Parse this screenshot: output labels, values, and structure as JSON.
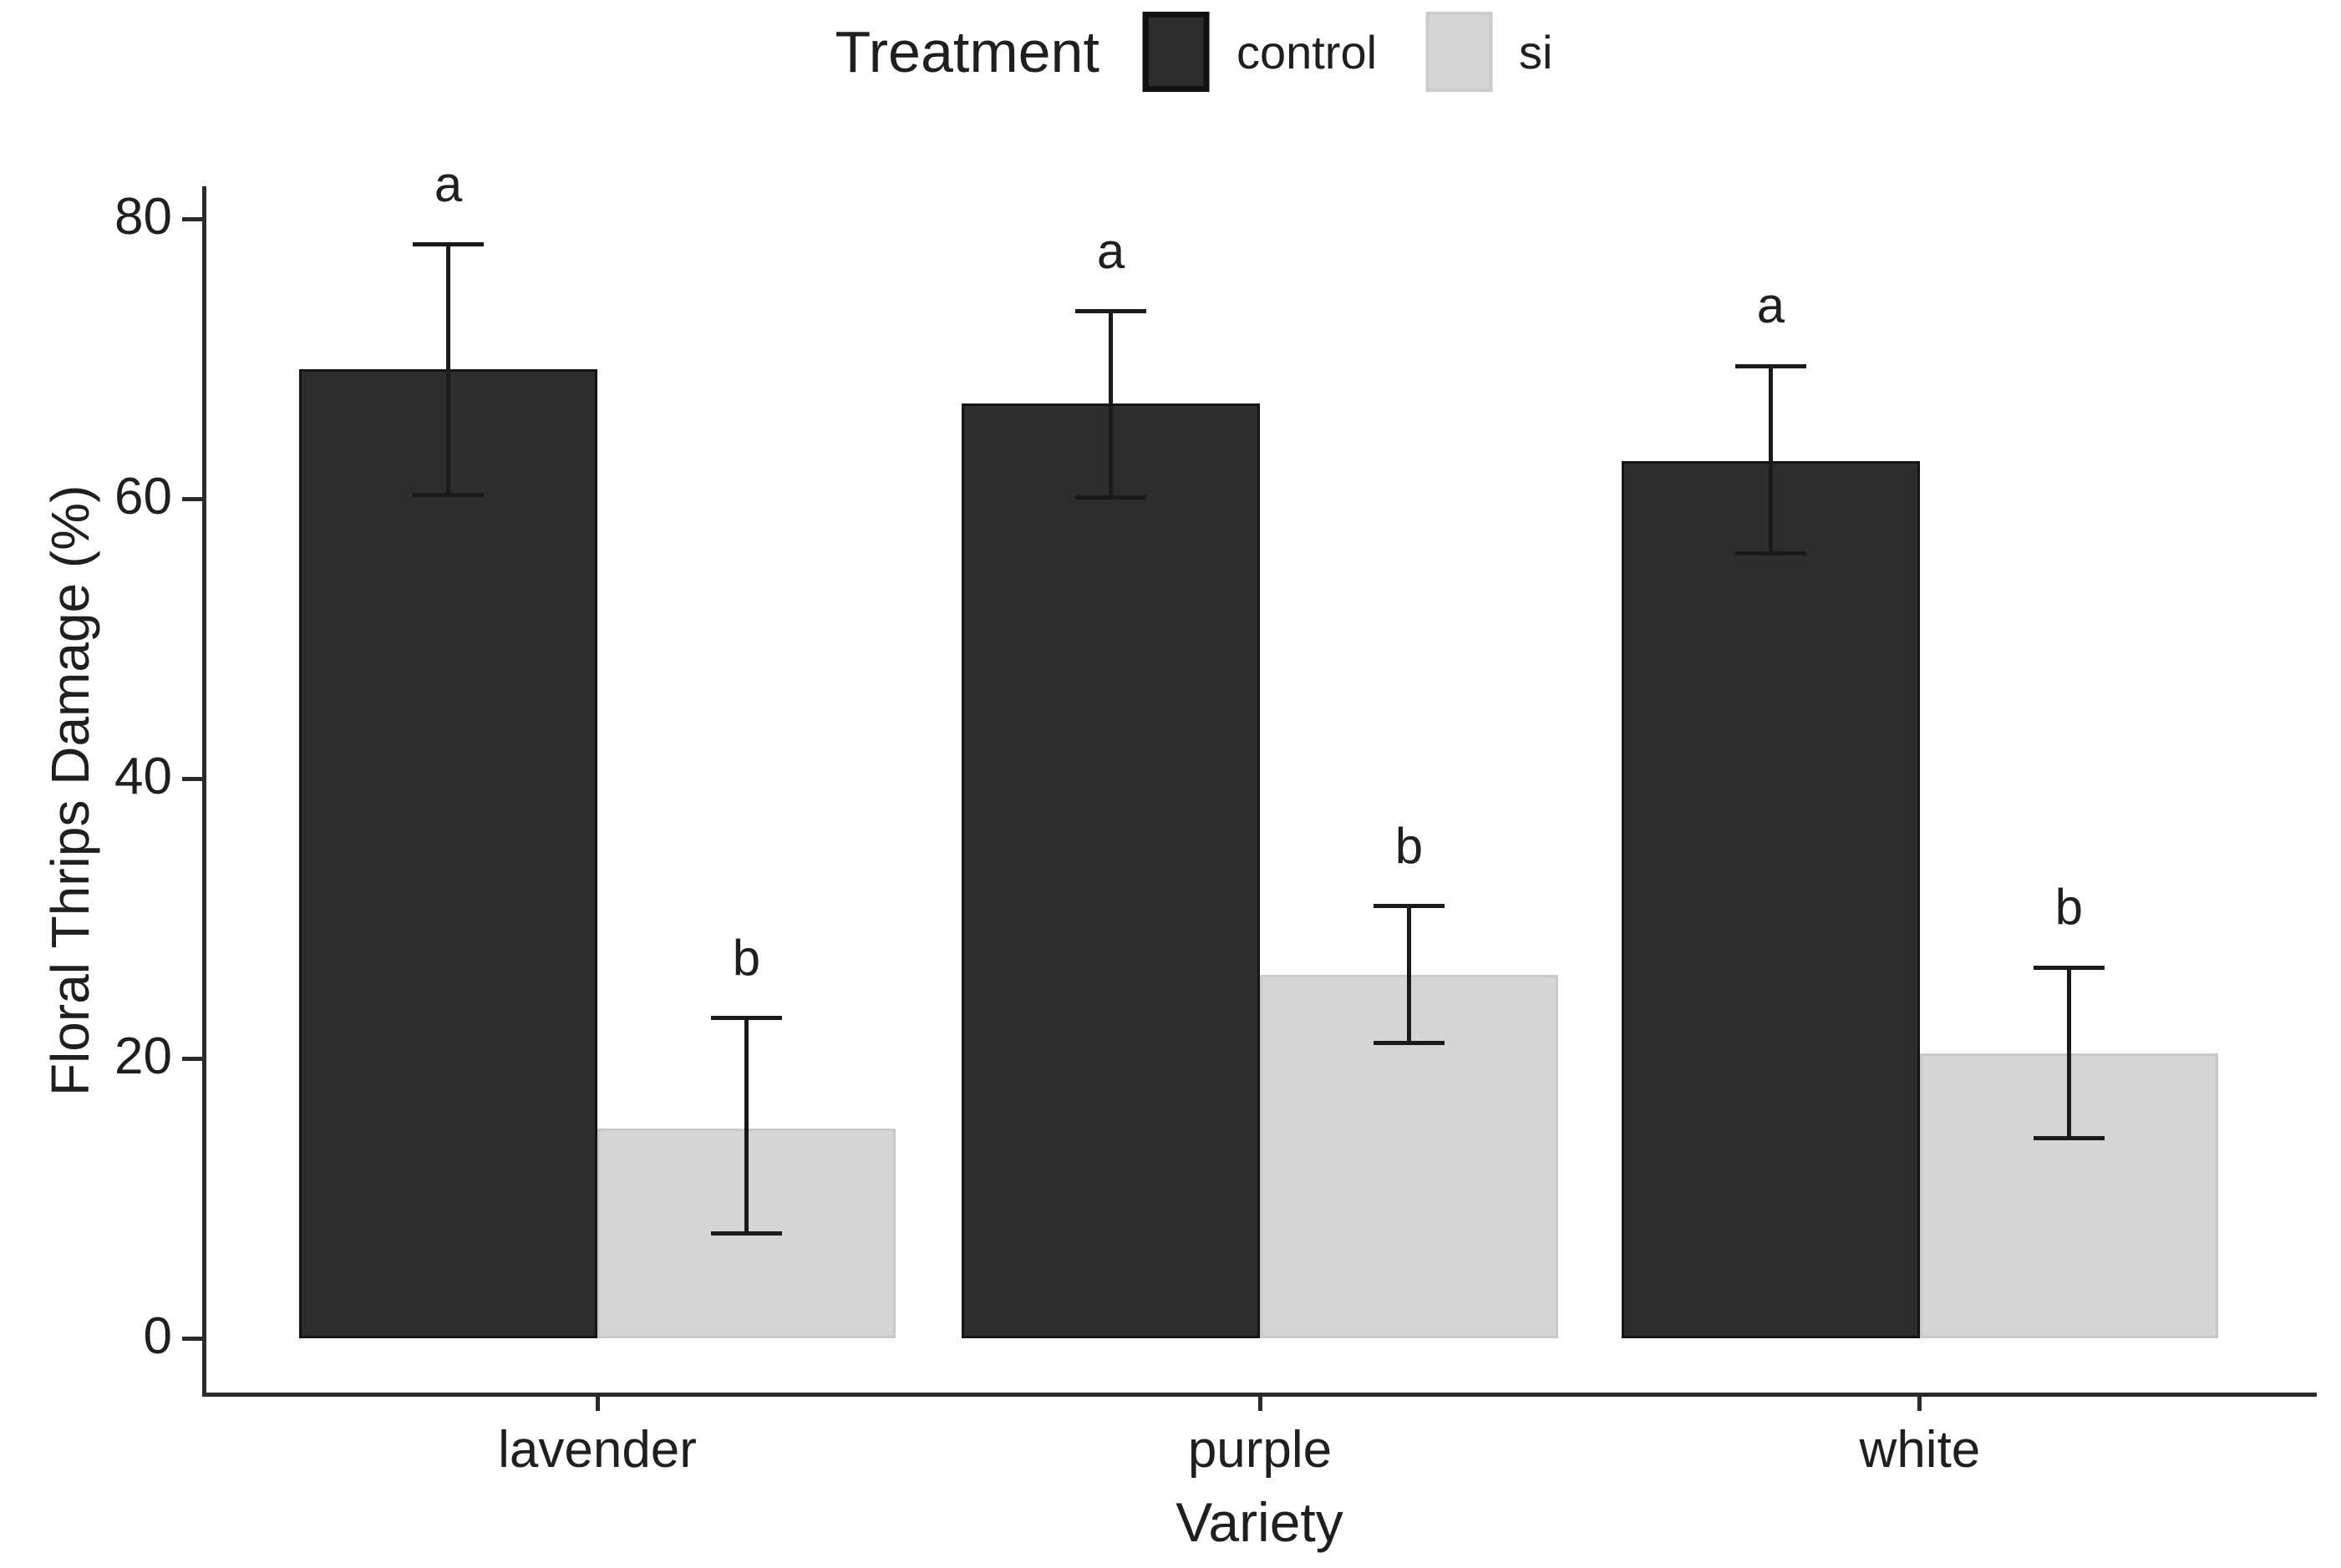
{
  "chart_data": {
    "type": "bar",
    "title": "",
    "legend_title": "Treatment",
    "legend_position": "top-center",
    "xlabel": "Variety",
    "ylabel": "Floral Thrips Damage (%)",
    "categories": [
      "lavender",
      "purple",
      "white"
    ],
    "yticks": [
      0,
      20,
      40,
      60,
      80
    ],
    "ylim": [
      0,
      80
    ],
    "grid": false,
    "colors": {
      "control_fill": "#2d2d2d",
      "control_edge": "#141414",
      "si_fill": "#d5d5d5",
      "si_edge": "#c9c9c9",
      "axis": "#2b2b2b",
      "error_bar": "#1a1a1a"
    },
    "series": [
      {
        "name": "control",
        "values": [
          69.3,
          66.8,
          62.7
        ],
        "error_low": [
          60.3,
          60.1,
          56.1
        ],
        "error_high": [
          78.2,
          73.4,
          69.5
        ],
        "sig_letters": [
          "a",
          "a",
          "a"
        ]
      },
      {
        "name": "si",
        "values": [
          15.0,
          26.0,
          20.4
        ],
        "error_low": [
          7.5,
          21.1,
          14.3
        ],
        "error_high": [
          22.9,
          30.9,
          26.5
        ],
        "sig_letters": [
          "b",
          "b",
          "b"
        ]
      }
    ]
  }
}
